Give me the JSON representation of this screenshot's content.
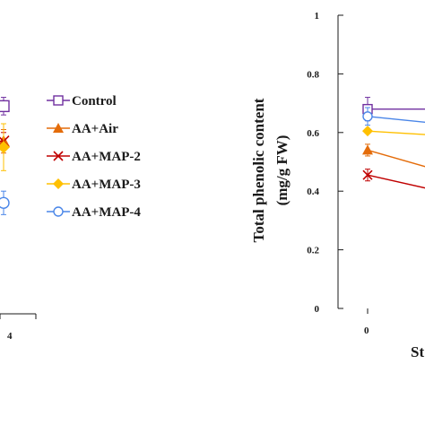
{
  "chart_data": [
    {
      "type": "line",
      "panel": "left (cropped)",
      "xtick_labels": [
        "4"
      ],
      "series": [
        {
          "name": "Control",
          "values": [
            0.69
          ]
        },
        {
          "name": "AA+Air",
          "values": [
            0.57
          ]
        },
        {
          "name": "AA+MAP-2",
          "values": [
            0.57
          ]
        },
        {
          "name": "AA+MAP-3",
          "values": [
            0.55
          ]
        },
        {
          "name": "AA+MAP-4",
          "values": [
            0.36
          ]
        }
      ],
      "errors": [
        0.03,
        0.04,
        0.03,
        0.08,
        0.04
      ]
    },
    {
      "type": "line",
      "panel": "right (cropped)",
      "ylabel_line1": "Total phenolic content",
      "ylabel_line2": "(mg/g FW)",
      "xlabel_partial": "St",
      "ylim": [
        0,
        1
      ],
      "yticks": [
        {
          "value": 0,
          "label": "0"
        },
        {
          "value": 0.2,
          "label": "0.2"
        },
        {
          "value": 0.4,
          "label": "0.4"
        },
        {
          "value": 0.6,
          "label": "0.6"
        },
        {
          "value": 0.8,
          "label": "0.8"
        },
        {
          "value": 1,
          "label": "1"
        }
      ],
      "xtick_labels": [
        "0"
      ],
      "x": [
        0,
        1
      ],
      "series": [
        {
          "name": "Control",
          "values": [
            0.68,
            0.68
          ],
          "error": 0.04
        },
        {
          "name": "AA+Air",
          "values": [
            0.54,
            0.47
          ],
          "error": 0.02
        },
        {
          "name": "AA+MAP-2",
          "values": [
            0.455,
            0.4
          ],
          "error": 0.02
        },
        {
          "name": "AA+MAP-3",
          "values": [
            0.605,
            0.59
          ],
          "error": 0.0
        },
        {
          "name": "AA+MAP-4",
          "values": [
            0.655,
            0.63
          ],
          "error": 0.03
        }
      ]
    }
  ],
  "legend": [
    {
      "label": "Control",
      "color": "#7030a0",
      "marker": "square-open"
    },
    {
      "label": "AA+Air",
      "color": "#e46c0a",
      "marker": "triangle-filled"
    },
    {
      "label": "AA+MAP-2",
      "color": "#c00000",
      "marker": "x-cross"
    },
    {
      "label": "AA+MAP-3",
      "color": "#ffc000",
      "marker": "diamond-filled"
    },
    {
      "label": "AA+MAP-4",
      "color": "#4a86e8",
      "marker": "circle-open"
    }
  ]
}
